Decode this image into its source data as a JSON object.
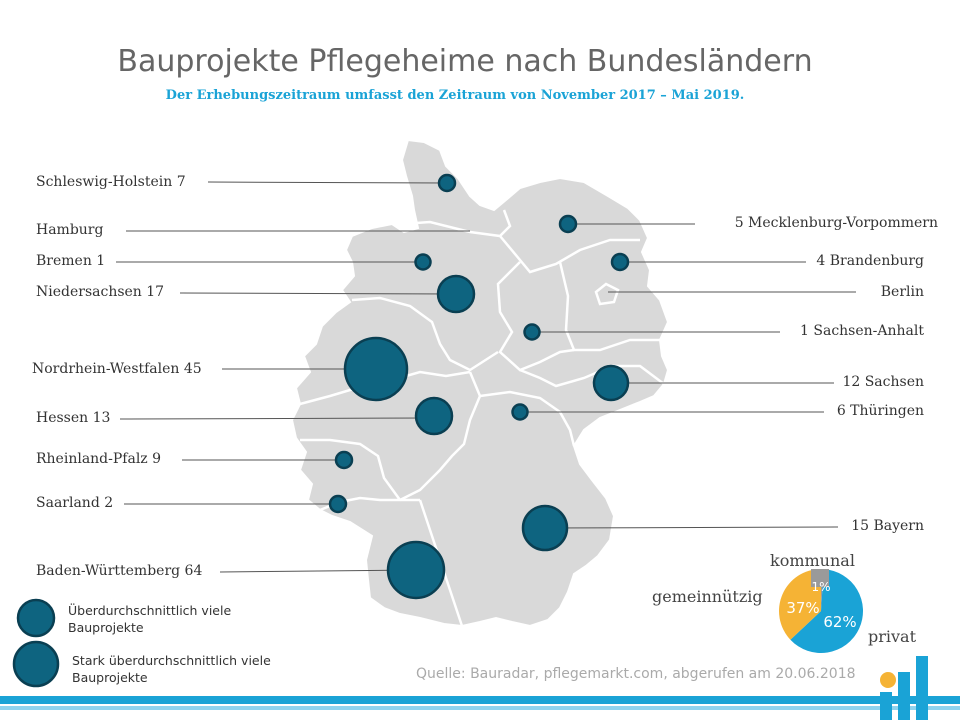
{
  "title": "Bauprojekte Pflegeheime nach Bundesländern",
  "subtitle": "Der Erhebungszeitraum umfasst den Zeitraum von November 2017 – Mai 2019.",
  "states": [
    {
      "id": "schleswig-holstein",
      "label": "Schleswig-Holstein 7",
      "value": 7
    },
    {
      "id": "hamburg",
      "label": "Hamburg",
      "value": null
    },
    {
      "id": "bremen",
      "label": "Bremen 1",
      "value": 1
    },
    {
      "id": "niedersachsen",
      "label": "Niedersachsen 17",
      "value": 17
    },
    {
      "id": "nordrhein-westfalen",
      "label": "Nordrhein-Westfalen 45",
      "value": 45
    },
    {
      "id": "hessen",
      "label": "Hessen 13",
      "value": 13
    },
    {
      "id": "rheinland-pfalz",
      "label": "Rheinland-Pfalz 9",
      "value": 9
    },
    {
      "id": "saarland",
      "label": "Saarland 2",
      "value": 2
    },
    {
      "id": "baden-wuerttemberg",
      "label": "Baden-Württemberg 64",
      "value": 64
    },
    {
      "id": "mecklenburg-vorpommern",
      "label": "5 Mecklenburg-Vorpommern",
      "value": 5
    },
    {
      "id": "brandenburg",
      "label": "4 Brandenburg",
      "value": 4
    },
    {
      "id": "berlin",
      "label": "Berlin",
      "value": null
    },
    {
      "id": "sachsen-anhalt",
      "label": "1 Sachsen-Anhalt",
      "value": 1
    },
    {
      "id": "sachsen",
      "label": "12 Sachsen",
      "value": 12
    },
    {
      "id": "thueringen",
      "label": "6 Thüringen",
      "value": 6
    },
    {
      "id": "bayern",
      "label": "15 Bayern",
      "value": 15
    }
  ],
  "legend": {
    "item1": "Überdurchschnittlich viele Bauprojekte",
    "item2": "Stark überdurchschnittlich viele Bauprojekte"
  },
  "pie": {
    "slices": [
      {
        "name": "privat",
        "value": 62,
        "label": "62%",
        "color": "#1aa3d6"
      },
      {
        "name": "gemeinnützig",
        "value": 37,
        "label": "37%",
        "color": "#f5b335"
      },
      {
        "name": "kommunal",
        "value": 1,
        "label": "1%",
        "color": "#9a9a9a"
      }
    ]
  },
  "source": "Quelle: Bauradar, pflegemarkt.com, abgerufen am 20.06.2018",
  "colors": {
    "map_fill": "#d9d9d9",
    "map_stroke": "#ffffff",
    "bubble_fill": "#0e6480",
    "bubble_stroke": "#0a3f52",
    "accent": "#1aa3d6"
  }
}
